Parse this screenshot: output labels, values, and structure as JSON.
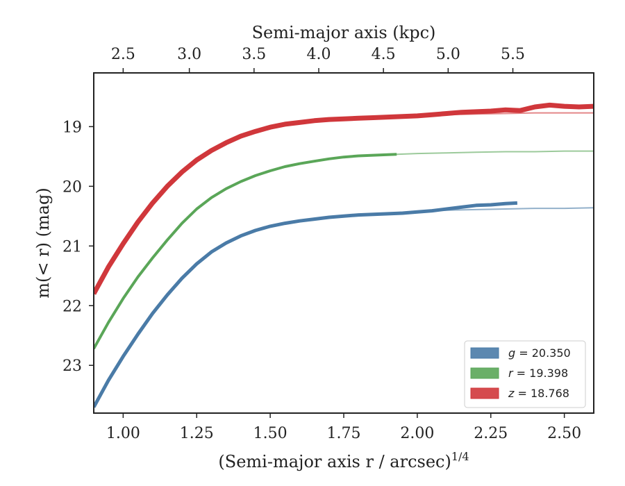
{
  "chart_data": {
    "type": "line",
    "title": "",
    "xlabel": "(Semi-major axis r / arcsec)",
    "xlabel_exponent": "1/4",
    "x2label": "Semi-major axis (kpc)",
    "ylabel": "m(< r) (mag)",
    "xlim": [
      0.9,
      2.6
    ],
    "ylim": [
      23.8,
      18.1
    ],
    "y_inverted": true,
    "grid": false,
    "legend_position": "lower-right",
    "x_ticks": [
      1.0,
      1.25,
      1.5,
      1.75,
      2.0,
      2.25,
      2.5
    ],
    "x_tick_labels": [
      "1.00",
      "1.25",
      "1.50",
      "1.75",
      "2.00",
      "2.25",
      "2.50"
    ],
    "y_ticks": [
      19,
      20,
      21,
      22,
      23
    ],
    "y_tick_labels": [
      "19",
      "20",
      "21",
      "22",
      "23"
    ],
    "x2_ticks": [
      2.5,
      3.0,
      3.5,
      4.0,
      4.5,
      5.0,
      5.5
    ],
    "x2_tick_labels": [
      "2.5",
      "3.0",
      "3.5",
      "4.0",
      "4.5",
      "5.0",
      "5.5"
    ],
    "x2_positions": [
      1.0,
      1.225,
      1.445,
      1.665,
      1.885,
      2.105,
      2.325
    ],
    "series": [
      {
        "band": "g",
        "value": "20.350",
        "color": "#4a7ba7",
        "profile_x": [
          0.9,
          0.95,
          1.0,
          1.05,
          1.1,
          1.15,
          1.2,
          1.25,
          1.3,
          1.35,
          1.4,
          1.45,
          1.5,
          1.55,
          1.6,
          1.65,
          1.7,
          1.75,
          1.8,
          1.85,
          1.9,
          1.95,
          2.0,
          2.05,
          2.1,
          2.15,
          2.2,
          2.25,
          2.3,
          2.34
        ],
        "profile_y": [
          23.7,
          23.25,
          22.85,
          22.48,
          22.13,
          21.82,
          21.54,
          21.3,
          21.1,
          20.95,
          20.83,
          20.74,
          20.67,
          20.62,
          20.58,
          20.55,
          20.52,
          20.5,
          20.48,
          20.47,
          20.46,
          20.45,
          20.43,
          20.41,
          20.38,
          20.35,
          20.32,
          20.31,
          20.29,
          20.28
        ],
        "model_x": [
          1.8,
          1.9,
          2.0,
          2.1,
          2.2,
          2.3,
          2.4,
          2.5,
          2.6
        ],
        "model_y": [
          20.48,
          20.45,
          20.42,
          20.4,
          20.39,
          20.38,
          20.37,
          20.37,
          20.36
        ]
      },
      {
        "band": "r",
        "value": "19.398",
        "color": "#5aa658",
        "profile_x": [
          0.9,
          0.95,
          1.0,
          1.05,
          1.1,
          1.15,
          1.2,
          1.25,
          1.3,
          1.35,
          1.4,
          1.45,
          1.5,
          1.55,
          1.6,
          1.65,
          1.7,
          1.75,
          1.8,
          1.85,
          1.9,
          1.93
        ],
        "profile_y": [
          22.72,
          22.28,
          21.88,
          21.52,
          21.2,
          20.9,
          20.62,
          20.38,
          20.19,
          20.04,
          19.92,
          19.82,
          19.74,
          19.67,
          19.62,
          19.58,
          19.54,
          19.51,
          19.49,
          19.48,
          19.47,
          19.465
        ],
        "model_x": [
          1.9,
          2.0,
          2.1,
          2.2,
          2.3,
          2.4,
          2.5,
          2.6
        ],
        "model_y": [
          19.47,
          19.45,
          19.44,
          19.43,
          19.42,
          19.42,
          19.41,
          19.41
        ]
      },
      {
        "band": "z",
        "value": "18.768",
        "color": "#d0373b",
        "profile_x": [
          0.9,
          0.95,
          1.0,
          1.05,
          1.1,
          1.15,
          1.2,
          1.25,
          1.3,
          1.35,
          1.4,
          1.45,
          1.5,
          1.55,
          1.6,
          1.65,
          1.7,
          1.75,
          1.8,
          1.85,
          1.9,
          1.95,
          2.0,
          2.05,
          2.1,
          2.15,
          2.2,
          2.25,
          2.3,
          2.35,
          2.4,
          2.45,
          2.5,
          2.55,
          2.6
        ],
        "profile_y": [
          21.8,
          21.35,
          20.96,
          20.6,
          20.28,
          20.0,
          19.76,
          19.56,
          19.4,
          19.27,
          19.16,
          19.08,
          19.01,
          18.96,
          18.93,
          18.9,
          18.88,
          18.87,
          18.86,
          18.85,
          18.84,
          18.83,
          18.82,
          18.8,
          18.78,
          18.76,
          18.75,
          18.74,
          18.72,
          18.73,
          18.67,
          18.64,
          18.66,
          18.67,
          18.66
        ],
        "model_x": [
          1.8,
          1.9,
          2.0,
          2.1,
          2.2,
          2.3,
          2.4,
          2.5,
          2.6
        ],
        "model_y": [
          18.86,
          18.84,
          18.82,
          18.8,
          18.79,
          18.78,
          18.77,
          18.77,
          18.77
        ]
      }
    ]
  }
}
